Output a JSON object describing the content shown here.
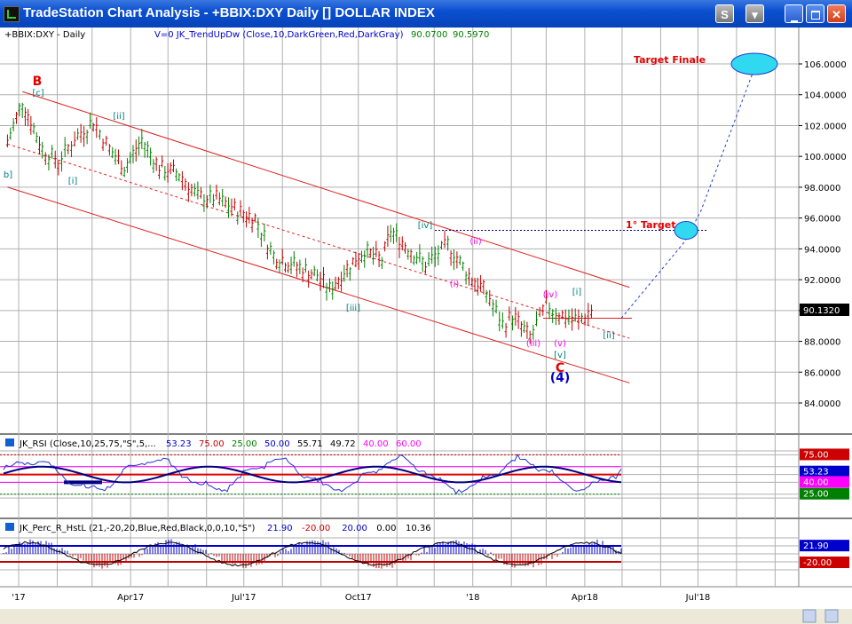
{
  "window": {
    "title": "TradeStation Chart Analysis - +BBIX:DXY Daily [] DOLLAR INDEX",
    "buttons": [
      "S",
      "▾",
      "",
      "",
      "✕"
    ]
  },
  "header": {
    "symbol": "+BBIX:DXY - Daily",
    "indicator": "V=0  JK_TrendUpDw (Close,10,DarkGreen,Red,DarkGray)",
    "val1": "90.0700",
    "val2": "90.5970"
  },
  "price_axis": {
    "ticks": [
      "106.0000",
      "104.0000",
      "102.0000",
      "100.0000",
      "98.0000",
      "96.0000",
      "94.0000",
      "92.0000",
      "90.0000",
      "88.0000",
      "86.0000",
      "84.0000"
    ],
    "last_price": "90.1320"
  },
  "x_axis": {
    "labels": [
      "'17",
      "Apr17",
      "Jul'17",
      "Oct17",
      "'18",
      "Apr18",
      "Jul'18"
    ]
  },
  "annotations": {
    "target_finale": "Target Finale",
    "target_1": "1° Target",
    "waves": [
      {
        "text": "B",
        "color": "#e00000"
      },
      {
        "text": "[c]",
        "color": "#008080"
      },
      {
        "text": "b]",
        "color": "#008080"
      },
      {
        "text": "[i]",
        "color": "#008080"
      },
      {
        "text": "[ii]",
        "color": "#008080"
      },
      {
        "text": "[iii]",
        "color": "#008080"
      },
      {
        "text": "[iv]",
        "color": "#008080"
      },
      {
        "text": "(i)",
        "color": "#ff00ff"
      },
      {
        "text": "(ii)",
        "color": "#ff00ff"
      },
      {
        "text": "(iii)",
        "color": "#ff00ff"
      },
      {
        "text": "(iv)",
        "color": "#ff00ff"
      },
      {
        "text": "(v)",
        "color": "#ff00ff"
      },
      {
        "text": "[v]",
        "color": "#008080"
      },
      {
        "text": "C",
        "color": "#e00000"
      },
      {
        "text": "(4)",
        "color": "#0000cc"
      },
      {
        "text": "[i]",
        "color": "#008080"
      },
      {
        "text": "[ii]",
        "color": "#008080"
      }
    ]
  },
  "rsi_panel": {
    "header": "JK_RSI (Close,10,25,75,\"S\",5,...",
    "values": [
      "53.23",
      "75.00",
      "25.00",
      "50.00",
      "55.71",
      "49.72",
      "40.00",
      "60.00"
    ],
    "value_colors": [
      "#0000cc",
      "#cc0000",
      "#008000",
      "#0000cc",
      "#000000",
      "#000000",
      "#ff00ff",
      "#ff00ff"
    ],
    "axis_labels": [
      "75.00",
      "53.23",
      "40.00",
      "25.00"
    ],
    "axis_colors": [
      "#cc0000",
      "#0000cc",
      "#ff00ff",
      "#008000"
    ]
  },
  "perc_panel": {
    "header": "JK_Perc_R_HstL (21,-20,20,Blue,Red,Black,0,0,10,\"S\")",
    "values": [
      "21.90",
      "-20.00",
      "20.00",
      "0.00",
      "10.36"
    ],
    "value_colors": [
      "#0000cc",
      "#cc0000",
      "#0000cc",
      "#000000",
      "#000000"
    ],
    "axis_labels": [
      "21.90",
      "-20.00"
    ],
    "axis_colors": [
      "#0000cc",
      "#cc0000"
    ]
  },
  "chart_data": {
    "type": "line",
    "title": "+BBIX:DXY Daily DOLLAR INDEX",
    "ylim": [
      82.5,
      107.5
    ],
    "x": [
      "2016-12-23",
      "2017-01-04",
      "2017-01-20",
      "2017-02-02",
      "2017-02-15",
      "2017-03-02",
      "2017-03-15",
      "2017-03-27",
      "2017-04-10",
      "2017-04-24",
      "2017-05-10",
      "2017-05-25",
      "2017-06-09",
      "2017-06-26",
      "2017-07-10",
      "2017-07-25",
      "2017-08-08",
      "2017-08-29",
      "2017-09-08",
      "2017-09-22",
      "2017-10-06",
      "2017-10-20",
      "2017-10-27",
      "2017-11-10",
      "2017-11-24",
      "2017-12-12",
      "2017-12-29",
      "2018-01-12",
      "2018-01-25",
      "2018-02-02",
      "2018-02-16",
      "2018-03-01",
      "2018-03-14",
      "2018-03-27",
      "2018-04-09"
    ],
    "series": [
      {
        "values": [
          100.9,
          103.5,
          100.4,
          99.6,
          101.1,
          102.2,
          100.4,
          99.2,
          101.0,
          99.2,
          98.8,
          97.3,
          97.2,
          96.4,
          95.9,
          93.5,
          93.0,
          92.2,
          91.3,
          92.7,
          93.8,
          93.2,
          95.1,
          94.0,
          92.9,
          94.2,
          92.2,
          91.1,
          89.0,
          89.6,
          88.2,
          90.3,
          89.6,
          89.3,
          90.1
        ]
      }
    ],
    "channel": {
      "upper": [
        [
          "2017-01-04",
          104.2
        ],
        [
          "2018-05-07",
          91.5
        ]
      ],
      "middle": [
        [
          "2016-12-23",
          100.8
        ],
        [
          "2018-05-07",
          88.2
        ]
      ],
      "lower": [
        [
          "2016-12-23",
          98.0
        ],
        [
          "2018-05-07",
          85.3
        ]
      ]
    },
    "targets": [
      {
        "label": "1° Target",
        "value": 95.2
      },
      {
        "label": "Target Finale",
        "value": 106.0
      }
    ]
  }
}
